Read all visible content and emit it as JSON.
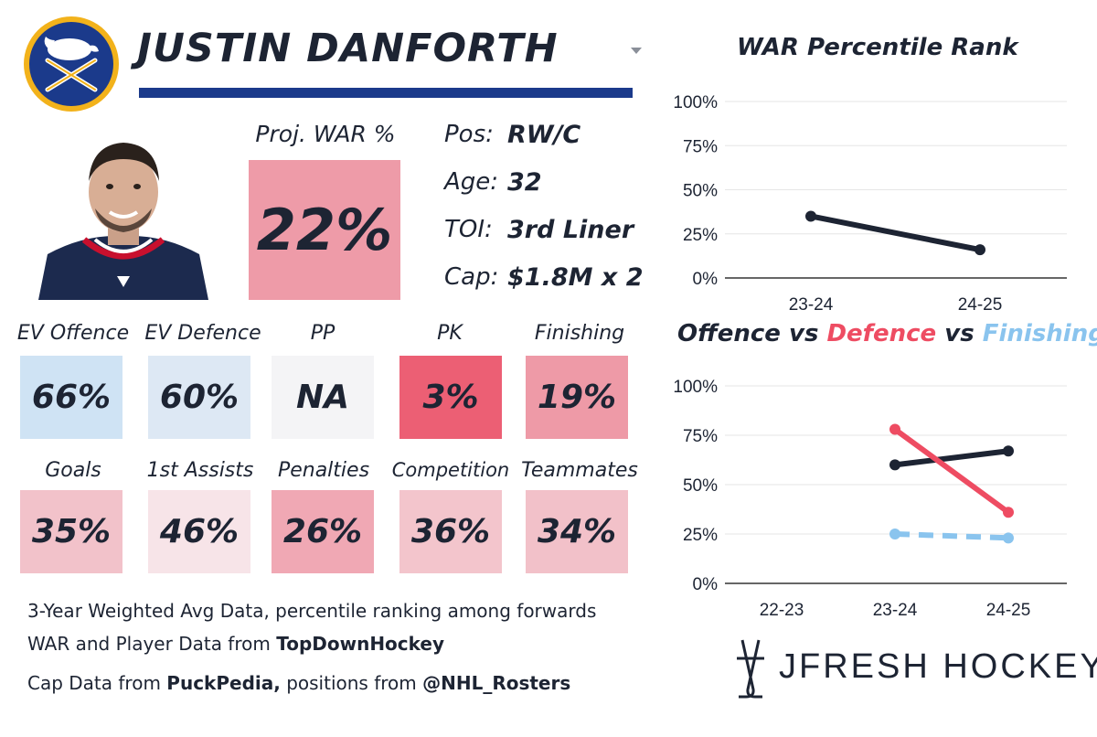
{
  "player": {
    "name": "JUSTIN DANFORTH",
    "proj_war_label": "Proj. WAR %",
    "proj_war_value": "22%",
    "info": [
      {
        "key": "Pos:",
        "value": "RW/C"
      },
      {
        "key": "Age:",
        "value": "32"
      },
      {
        "key": "TOI:",
        "value": "3rd Liner"
      },
      {
        "key": "Cap:",
        "value": "$1.8M x 2"
      }
    ]
  },
  "tiles_row1": [
    {
      "label": "EV Offence",
      "value": "66%",
      "color": "#cfe3f4"
    },
    {
      "label": "EV Defence",
      "value": "60%",
      "color": "#dde8f4"
    },
    {
      "label": "PP",
      "value": "NA",
      "color": "#f4f4f6"
    },
    {
      "label": "PK",
      "value": "3%",
      "color": "#ec5f74"
    },
    {
      "label": "Finishing",
      "value": "19%",
      "color": "#ee9aa7"
    }
  ],
  "tiles_row2": [
    {
      "label": "Goals",
      "value": "35%",
      "color": "#f2c2ca"
    },
    {
      "label": "1st Assists",
      "value": "46%",
      "color": "#f7e4e8"
    },
    {
      "label": "Penalties",
      "value": "26%",
      "color": "#f0a8b4"
    },
    {
      "label": "Competition",
      "value": "36%",
      "color": "#f3c5cc"
    },
    {
      "label": "Teammates",
      "value": "34%",
      "color": "#f2c1c9"
    }
  ],
  "footer": {
    "line1": "3-Year Weighted Avg Data, percentile ranking among forwards",
    "line2_prefix": "WAR and Player Data from ",
    "line2_bold": "TopDownHockey",
    "line3_prefix": "Cap Data from ",
    "line3_bold1": "PuckPedia,",
    "line3_mid": " positions from ",
    "line3_bold2": "@NHL_Rosters"
  },
  "brand": {
    "text": "JFRESH HOCKEY"
  },
  "icons": {
    "team_logo": "buffalo-sabres-logo-icon",
    "dropdown": "caret-down-icon",
    "brand_mark": "jfresh-hockey-sticks-icon"
  },
  "colors": {
    "navy": "#1d2433",
    "blue_rule": "#1b3a8b",
    "defence": "#ee4c62",
    "finishing": "#8ac4ee"
  },
  "chart_data": [
    {
      "type": "line",
      "title": "WAR Percentile Rank",
      "categories": [
        "23-24",
        "24-25"
      ],
      "series": [
        {
          "values": [
            35,
            16
          ],
          "color": "#1d2433"
        }
      ],
      "yticks": [
        "0%",
        "25%",
        "50%",
        "75%",
        "100%"
      ],
      "ylim": [
        0,
        100
      ],
      "grid": true
    },
    {
      "type": "line",
      "title_parts": [
        {
          "text": "Offence",
          "color": "#1d2433"
        },
        {
          "text": " vs ",
          "color": "#1d2433"
        },
        {
          "text": "Defence",
          "color": "#ee4c62"
        },
        {
          "text": " vs ",
          "color": "#1d2433"
        },
        {
          "text": "Finishing",
          "color": "#8ac4ee"
        }
      ],
      "categories": [
        "22-23",
        "23-24",
        "24-25"
      ],
      "series": [
        {
          "name": "Offence",
          "values": [
            null,
            60,
            67
          ],
          "color": "#1d2433",
          "dashed": false
        },
        {
          "name": "Defence",
          "values": [
            null,
            78,
            36
          ],
          "color": "#ee4c62",
          "dashed": false
        },
        {
          "name": "Finishing",
          "values": [
            null,
            25,
            23
          ],
          "color": "#8ac4ee",
          "dashed": true
        }
      ],
      "yticks": [
        "0%",
        "25%",
        "50%",
        "75%",
        "100%"
      ],
      "ylim": [
        0,
        100
      ],
      "grid": true
    }
  ]
}
